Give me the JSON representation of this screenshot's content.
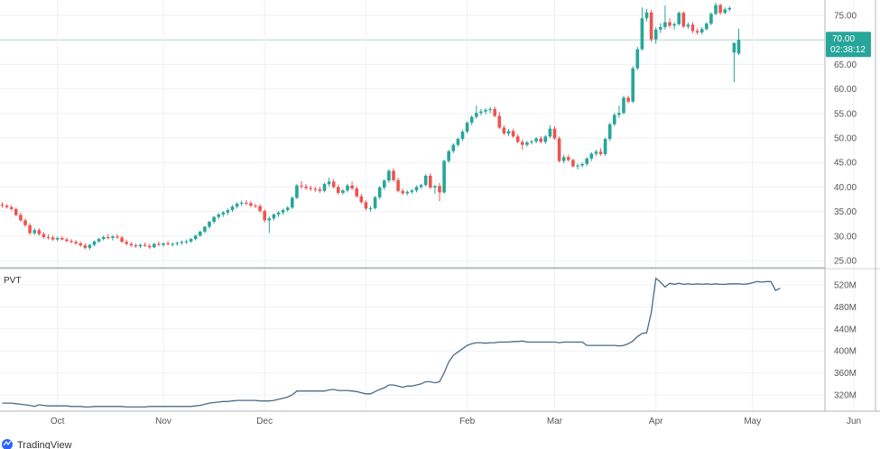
{
  "chart_data": [
    {
      "type": "candlestick",
      "title": "",
      "ylim": [
        23,
        78
      ],
      "y_ticks": [
        "75.00",
        "70.00",
        "65.00",
        "60.00",
        "55.00",
        "50.00",
        "45.00",
        "40.00",
        "35.00",
        "30.00",
        "25.00"
      ],
      "y_tick_values": [
        75,
        70,
        65,
        60,
        55,
        50,
        45,
        40,
        35,
        30,
        25
      ],
      "x_ticks": [
        {
          "label": "Oct",
          "index": 12
        },
        {
          "label": "Nov",
          "index": 35
        },
        {
          "label": "Dec",
          "index": 57
        },
        {
          "label": "",
          "index": 79
        },
        {
          "label": "Feb",
          "index": 101
        },
        {
          "label": "Mar",
          "index": 120
        },
        {
          "label": "Apr",
          "index": 142
        },
        {
          "label": "May",
          "index": 163
        },
        {
          "label": "Jun",
          "index": 185
        }
      ],
      "grid": true,
      "last_price": {
        "value": 70.0,
        "label": "70.00",
        "countdown": "02:38:12",
        "color": "#26a69a"
      },
      "up_color": "#26a69a",
      "down_color": "#ef5350",
      "candles": [
        [
          36.4,
          36.9,
          35.8,
          36.2
        ],
        [
          36.2,
          36.5,
          35.6,
          35.9
        ],
        [
          35.9,
          36.3,
          35.2,
          35.5
        ],
        [
          35.5,
          35.8,
          34.0,
          34.3
        ],
        [
          34.3,
          34.8,
          32.9,
          33.2
        ],
        [
          33.2,
          33.6,
          31.9,
          32.2
        ],
        [
          32.2,
          32.6,
          30.2,
          30.6
        ],
        [
          30.6,
          31.6,
          30.2,
          31.2
        ],
        [
          31.2,
          31.6,
          30.1,
          30.4
        ],
        [
          30.4,
          30.8,
          29.5,
          29.8
        ],
        [
          29.8,
          30.3,
          29.3,
          29.7
        ],
        [
          29.7,
          30.1,
          29.0,
          29.3
        ],
        [
          29.3,
          29.9,
          28.9,
          29.6
        ],
        [
          29.6,
          30.0,
          29.1,
          29.3
        ],
        [
          29.3,
          29.7,
          28.7,
          29.0
        ],
        [
          29.0,
          29.4,
          28.5,
          28.8
        ],
        [
          28.8,
          29.2,
          28.2,
          28.5
        ],
        [
          28.5,
          28.9,
          27.8,
          28.1
        ],
        [
          28.1,
          28.5,
          27.3,
          27.6
        ],
        [
          27.6,
          28.4,
          27.2,
          28.2
        ],
        [
          28.2,
          29.1,
          27.9,
          28.9
        ],
        [
          28.9,
          29.6,
          28.6,
          29.4
        ],
        [
          29.4,
          30.1,
          29.1,
          29.8
        ],
        [
          29.8,
          30.4,
          29.3,
          29.6
        ],
        [
          29.6,
          30.2,
          29.1,
          29.9
        ],
        [
          29.9,
          30.4,
          29.4,
          29.7
        ],
        [
          29.7,
          30.1,
          28.6,
          28.8
        ],
        [
          28.8,
          29.3,
          28.1,
          28.4
        ],
        [
          28.4,
          28.8,
          27.8,
          28.1
        ],
        [
          28.1,
          28.5,
          27.6,
          27.9
        ],
        [
          27.9,
          28.4,
          27.5,
          28.2
        ],
        [
          28.2,
          28.7,
          27.8,
          28.0
        ],
        [
          28.0,
          28.4,
          27.4,
          27.7
        ],
        [
          27.7,
          28.6,
          27.5,
          28.4
        ],
        [
          28.4,
          28.9,
          28.0,
          28.2
        ],
        [
          28.2,
          28.7,
          27.8,
          28.5
        ],
        [
          28.5,
          29.0,
          28.1,
          28.3
        ],
        [
          28.3,
          28.7,
          27.9,
          28.4
        ],
        [
          28.4,
          28.9,
          28.0,
          28.6
        ],
        [
          28.6,
          29.1,
          28.2,
          28.8
        ],
        [
          28.8,
          29.3,
          28.4,
          28.9
        ],
        [
          28.9,
          29.6,
          28.6,
          29.4
        ],
        [
          29.4,
          30.3,
          29.1,
          30.1
        ],
        [
          30.1,
          31.1,
          29.8,
          30.9
        ],
        [
          30.9,
          32.1,
          30.6,
          31.9
        ],
        [
          31.9,
          33.1,
          31.5,
          32.9
        ],
        [
          32.9,
          34.1,
          32.5,
          33.9
        ],
        [
          33.9,
          34.7,
          33.4,
          34.4
        ],
        [
          34.4,
          35.1,
          33.9,
          34.8
        ],
        [
          34.8,
          35.6,
          34.3,
          35.3
        ],
        [
          35.3,
          36.3,
          34.9,
          36.0
        ],
        [
          36.0,
          36.9,
          35.6,
          36.6
        ],
        [
          36.6,
          37.2,
          36.1,
          36.8
        ],
        [
          36.8,
          37.3,
          36.3,
          36.7
        ],
        [
          36.7,
          37.1,
          35.9,
          36.2
        ],
        [
          36.2,
          36.6,
          35.7,
          36.1
        ],
        [
          36.1,
          36.5,
          34.8,
          35.1
        ],
        [
          35.1,
          35.5,
          32.8,
          33.2
        ],
        [
          33.2,
          34.0,
          30.6,
          33.6
        ],
        [
          33.6,
          34.6,
          33.2,
          34.4
        ],
        [
          34.4,
          35.1,
          33.9,
          34.8
        ],
        [
          34.8,
          35.6,
          34.3,
          35.3
        ],
        [
          35.3,
          36.1,
          34.9,
          35.8
        ],
        [
          35.8,
          38.1,
          35.5,
          37.8
        ],
        [
          37.8,
          40.6,
          37.5,
          40.3
        ],
        [
          40.3,
          41.2,
          39.6,
          40.1
        ],
        [
          40.1,
          40.6,
          39.4,
          39.8
        ],
        [
          39.8,
          40.3,
          39.2,
          39.6
        ],
        [
          39.6,
          40.1,
          39.0,
          39.5
        ],
        [
          39.5,
          40.0,
          38.8,
          39.2
        ],
        [
          39.2,
          40.9,
          38.9,
          40.6
        ],
        [
          40.6,
          41.9,
          40.1,
          41.1
        ],
        [
          41.1,
          41.6,
          39.7,
          40.0
        ],
        [
          40.0,
          40.5,
          38.5,
          38.8
        ],
        [
          38.8,
          39.6,
          38.4,
          39.3
        ],
        [
          39.3,
          40.6,
          38.9,
          40.3
        ],
        [
          40.3,
          41.1,
          39.4,
          39.7
        ],
        [
          39.7,
          40.2,
          37.8,
          38.1
        ],
        [
          38.1,
          38.6,
          36.6,
          36.9
        ],
        [
          36.9,
          37.3,
          35.2,
          35.6
        ],
        [
          35.6,
          36.1,
          35.0,
          35.7
        ],
        [
          35.7,
          38.2,
          35.4,
          37.9
        ],
        [
          37.9,
          40.2,
          37.5,
          39.9
        ],
        [
          39.9,
          41.6,
          39.4,
          41.3
        ],
        [
          41.3,
          43.6,
          40.9,
          43.3
        ],
        [
          43.3,
          43.8,
          41.1,
          41.4
        ],
        [
          41.4,
          41.9,
          38.9,
          39.2
        ],
        [
          39.2,
          39.7,
          38.4,
          38.7
        ],
        [
          38.7,
          39.3,
          38.3,
          39.0
        ],
        [
          39.0,
          39.6,
          38.6,
          39.3
        ],
        [
          39.3,
          40.3,
          38.9,
          40.0
        ],
        [
          40.0,
          40.7,
          39.6,
          40.4
        ],
        [
          40.4,
          42.6,
          40.1,
          42.3
        ],
        [
          42.3,
          42.8,
          39.6,
          39.9
        ],
        [
          39.9,
          40.4,
          38.6,
          40.2
        ],
        [
          40.2,
          40.8,
          37.1,
          38.9
        ],
        [
          38.9,
          45.6,
          38.6,
          45.3
        ],
        [
          45.3,
          47.6,
          44.9,
          47.3
        ],
        [
          47.3,
          48.9,
          46.9,
          48.6
        ],
        [
          48.6,
          50.1,
          48.2,
          49.8
        ],
        [
          49.8,
          51.6,
          49.4,
          51.3
        ],
        [
          51.3,
          53.4,
          50.9,
          53.1
        ],
        [
          53.1,
          54.6,
          52.6,
          54.3
        ],
        [
          54.3,
          56.6,
          53.9,
          55.1
        ],
        [
          55.1,
          55.9,
          54.6,
          55.4
        ],
        [
          55.4,
          56.1,
          54.8,
          55.7
        ],
        [
          55.7,
          56.3,
          55.1,
          55.9
        ],
        [
          55.9,
          56.4,
          54.2,
          54.5
        ],
        [
          54.5,
          55.3,
          51.8,
          52.1
        ],
        [
          52.1,
          52.6,
          50.6,
          50.9
        ],
        [
          50.9,
          51.8,
          50.4,
          51.4
        ],
        [
          51.4,
          51.9,
          50.0,
          50.3
        ],
        [
          50.3,
          50.8,
          48.9,
          49.2
        ],
        [
          49.2,
          49.7,
          47.6,
          48.6
        ],
        [
          48.6,
          49.4,
          48.2,
          49.1
        ],
        [
          49.1,
          49.6,
          48.7,
          49.3
        ],
        [
          49.3,
          50.2,
          48.9,
          49.9
        ],
        [
          49.9,
          50.4,
          48.9,
          49.2
        ],
        [
          49.2,
          50.6,
          48.8,
          50.3
        ],
        [
          50.3,
          52.6,
          49.9,
          51.9
        ],
        [
          51.9,
          52.4,
          49.6,
          49.9
        ],
        [
          49.9,
          50.3,
          45.0,
          45.3
        ],
        [
          45.3,
          46.6,
          44.8,
          46.1
        ],
        [
          46.1,
          46.6,
          45.2,
          45.5
        ],
        [
          45.5,
          45.8,
          44.0,
          44.2
        ],
        [
          44.2,
          44.8,
          43.6,
          44.4
        ],
        [
          44.4,
          45.0,
          44.0,
          44.7
        ],
        [
          44.7,
          46.1,
          44.3,
          45.8
        ],
        [
          45.8,
          47.1,
          45.3,
          46.8
        ],
        [
          46.8,
          47.6,
          46.3,
          47.2
        ],
        [
          47.2,
          47.9,
          46.4,
          46.7
        ],
        [
          46.7,
          50.1,
          46.3,
          49.8
        ],
        [
          49.8,
          53.1,
          49.4,
          52.8
        ],
        [
          52.8,
          55.1,
          52.4,
          54.7
        ],
        [
          54.7,
          56.6,
          54.1,
          55.1
        ],
        [
          55.1,
          58.6,
          54.8,
          58.2
        ],
        [
          58.2,
          58.6,
          57.1,
          57.4
        ],
        [
          57.4,
          64.6,
          57.1,
          64.2
        ],
        [
          64.2,
          68.6,
          63.8,
          68.1
        ],
        [
          68.1,
          76.6,
          67.8,
          74.4
        ],
        [
          74.4,
          76.3,
          73.8,
          75.6
        ],
        [
          75.6,
          76.1,
          69.6,
          70.1
        ],
        [
          70.1,
          72.6,
          69.2,
          72.1
        ],
        [
          72.1,
          73.4,
          71.4,
          72.6
        ],
        [
          72.6,
          77.0,
          72.1,
          73.6
        ],
        [
          73.6,
          74.4,
          72.5,
          72.9
        ],
        [
          72.9,
          73.6,
          72.1,
          73.2
        ],
        [
          73.2,
          75.8,
          72.9,
          75.5
        ],
        [
          75.5,
          75.8,
          72.4,
          72.7
        ],
        [
          72.7,
          73.6,
          72.2,
          73.1
        ],
        [
          73.1,
          73.6,
          71.4,
          71.8
        ],
        [
          71.8,
          72.3,
          71.1,
          71.5
        ],
        [
          71.5,
          72.6,
          71.1,
          72.2
        ],
        [
          72.2,
          73.6,
          71.9,
          73.3
        ],
        [
          73.3,
          75.6,
          73.0,
          75.3
        ],
        [
          75.3,
          77.6,
          75.0,
          77.1
        ],
        [
          77.1,
          77.4,
          75.1,
          75.5
        ],
        [
          75.5,
          76.6,
          75.2,
          76.2
        ],
        [
          76.2,
          76.8,
          75.8,
          76.5
        ],
        [
          67.4,
          69.4,
          61.4,
          69.4
        ],
        [
          67.2,
          72.3,
          66.9,
          70.0
        ]
      ]
    },
    {
      "type": "line",
      "title": "PVT",
      "ylim": [
        290,
        540
      ],
      "y_ticks": [
        "520M",
        "480M",
        "440M",
        "400M",
        "360M",
        "320M"
      ],
      "y_tick_values": [
        520,
        480,
        440,
        400,
        360,
        320
      ],
      "unit": "M",
      "color": "#4b6a88",
      "series": [
        {
          "values": [
            305,
            305,
            305,
            304,
            303,
            302,
            301,
            299,
            302,
            301,
            300,
            300,
            300,
            300,
            300,
            299,
            299,
            299,
            298,
            298,
            299,
            299,
            299,
            299,
            299,
            299,
            299,
            298,
            298,
            298,
            298,
            298,
            299,
            299,
            299,
            299,
            299,
            299,
            299,
            299,
            299,
            299,
            300,
            301,
            303,
            305,
            306,
            307,
            308,
            308,
            309,
            310,
            310,
            310,
            310,
            310,
            309,
            309,
            309,
            310,
            312,
            314,
            316,
            320,
            327,
            327,
            327,
            327,
            327,
            327,
            327,
            329,
            330,
            328,
            328,
            328,
            327,
            326,
            324,
            322,
            322,
            326,
            330,
            333,
            338,
            338,
            336,
            334,
            336,
            336,
            338,
            340,
            344,
            344,
            342,
            344,
            360,
            380,
            392,
            398,
            404,
            410,
            413,
            415,
            415,
            414,
            415,
            415,
            416,
            416,
            416,
            417,
            417,
            418,
            416,
            416,
            416,
            416,
            416,
            416,
            416,
            415,
            416,
            416,
            416,
            416,
            416,
            410,
            410,
            410,
            410,
            410,
            410,
            410,
            409,
            410,
            413,
            418,
            426,
            432,
            433,
            470,
            532,
            525,
            516,
            523,
            521,
            523,
            521,
            522,
            521,
            522,
            521,
            522,
            521,
            522,
            521,
            521,
            522,
            522,
            522,
            521,
            522,
            524,
            526,
            525,
            526,
            526,
            510,
            514
          ]
        }
      ]
    }
  ],
  "branding": {
    "logo_text": "TradingView"
  }
}
